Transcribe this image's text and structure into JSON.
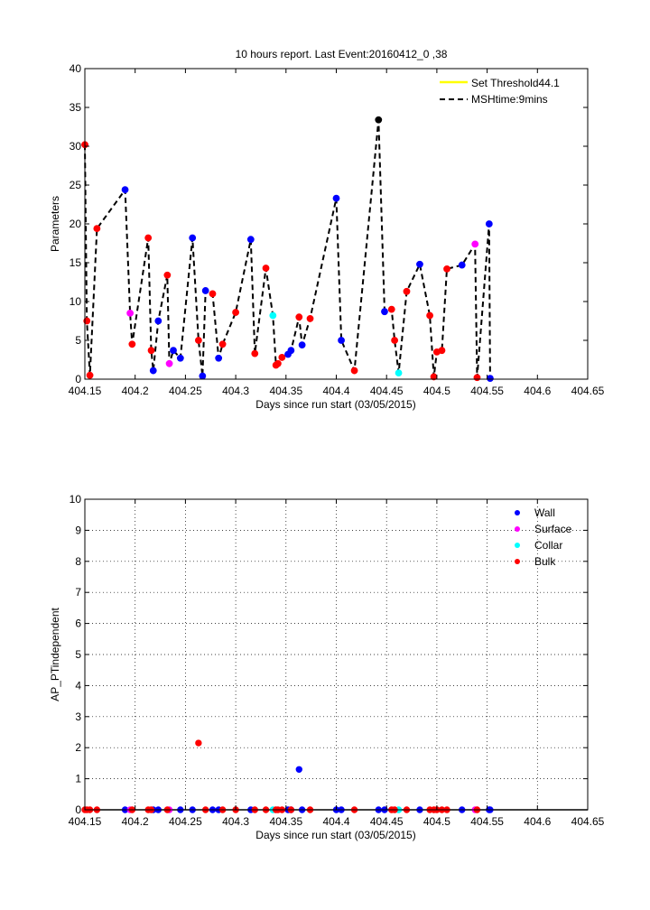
{
  "chart_data": [
    {
      "type": "line",
      "title": "10 hours report. Last Event:20160412_0 ,38",
      "xlabel": "Days since run start (03/05/2015)",
      "ylabel": "Parameters",
      "xlim": [
        404.15,
        404.65
      ],
      "ylim": [
        0,
        40
      ],
      "xticks": [
        "404.15",
        "404.2",
        "404.25",
        "404.3",
        "404.35",
        "404.4",
        "404.45",
        "404.5",
        "404.55",
        "404.6",
        "404.65"
      ],
      "yticks": [
        "0",
        "5",
        "10",
        "15",
        "20",
        "25",
        "30",
        "35",
        "40"
      ],
      "grid": false,
      "legend_position": "top-right",
      "legend": [
        {
          "label": "Set Threshold44.1",
          "color": "#ffff00",
          "style": "solid"
        },
        {
          "label": "MSHtime:9mins",
          "color": "#000000",
          "style": "dashed"
        }
      ],
      "category_colors": {
        "Wall": "#0000ff",
        "Surface": "#ff00ff",
        "Collar": "#00ffff",
        "Bulk": "#ff0000",
        "Last": "#000000"
      },
      "series": [
        {
          "name": "MSHtime:9mins",
          "x": [
            404.15,
            404.152,
            404.155,
            404.162,
            404.19,
            404.195,
            404.197,
            404.213,
            404.216,
            404.218,
            404.223,
            404.232,
            404.234,
            404.238,
            404.245,
            404.257,
            404.263,
            404.267,
            404.27,
            404.277,
            404.283,
            404.287,
            404.3,
            404.315,
            404.319,
            404.33,
            404.337,
            404.34,
            404.342,
            404.346,
            404.352,
            404.355,
            404.363,
            404.366,
            404.374,
            404.4,
            404.405,
            404.418,
            404.442,
            404.448,
            404.455,
            404.458,
            404.462,
            404.47,
            404.483,
            404.493,
            404.497,
            404.5,
            404.505,
            404.51,
            404.525,
            404.538,
            404.54,
            404.552,
            404.553
          ],
          "y": [
            30.2,
            7.5,
            0.5,
            19.4,
            24.4,
            8.5,
            4.5,
            18.2,
            3.7,
            1.1,
            7.5,
            13.4,
            2.0,
            3.7,
            2.7,
            18.2,
            5.0,
            0.4,
            11.4,
            11.0,
            2.7,
            4.5,
            8.6,
            18.0,
            3.3,
            14.3,
            8.2,
            1.8,
            2.0,
            2.8,
            3.2,
            3.7,
            8.0,
            4.4,
            7.8,
            23.3,
            5.0,
            1.1,
            33.4,
            8.7,
            9.0,
            5.0,
            0.8,
            11.3,
            14.8,
            8.2,
            0.3,
            3.5,
            3.7,
            14.2,
            14.7,
            17.4,
            0.2,
            20.0,
            0.1
          ],
          "markers": [
            "Bulk",
            "Bulk",
            "Bulk",
            "Bulk",
            "Wall",
            "Surface",
            "Bulk",
            "Bulk",
            "Bulk",
            "Wall",
            "Wall",
            "Bulk",
            "Surface",
            "Wall",
            "Wall",
            "Wall",
            "Bulk",
            "Wall",
            "Wall",
            "Bulk",
            "Wall",
            "Bulk",
            "Bulk",
            "Wall",
            "Bulk",
            "Bulk",
            "Collar",
            "Bulk",
            "Bulk",
            "Bulk",
            "Wall",
            "Wall",
            "Bulk",
            "Wall",
            "Bulk",
            "Wall",
            "Wall",
            "Bulk",
            "Last",
            "Wall",
            "Bulk",
            "Bulk",
            "Collar",
            "Bulk",
            "Wall",
            "Bulk",
            "Bulk",
            "Bulk",
            "Bulk",
            "Bulk",
            "Wall",
            "Surface",
            "Bulk",
            "Wall",
            "Wall"
          ]
        }
      ]
    },
    {
      "type": "scatter",
      "title": "",
      "xlabel": "Days since run start (03/05/2015)",
      "ylabel": "AP_PTindependent",
      "xlim": [
        404.15,
        404.65
      ],
      "ylim": [
        0,
        10
      ],
      "xticks": [
        "404.15",
        "404.2",
        "404.25",
        "404.3",
        "404.35",
        "404.4",
        "404.45",
        "404.5",
        "404.55",
        "404.6",
        "404.65"
      ],
      "yticks": [
        "0",
        "1",
        "2",
        "3",
        "4",
        "5",
        "6",
        "7",
        "8",
        "9",
        "10"
      ],
      "grid": true,
      "legend_position": "top-right",
      "series": [
        {
          "name": "Wall",
          "color": "#0000ff",
          "x": [
            404.19,
            404.218,
            404.223,
            404.245,
            404.257,
            404.277,
            404.283,
            404.315,
            404.352,
            404.355,
            404.363,
            404.366,
            404.4,
            404.405,
            404.442,
            404.448,
            404.483,
            404.525,
            404.552,
            404.553
          ],
          "y": [
            0,
            0,
            0,
            0,
            0,
            0,
            0,
            0,
            0,
            0,
            1.3,
            0,
            0,
            0,
            0,
            0,
            0,
            0,
            0,
            0
          ]
        },
        {
          "name": "Surface",
          "color": "#ff00ff",
          "x": [
            404.195,
            404.234,
            404.538
          ],
          "y": [
            0,
            0,
            0
          ]
        },
        {
          "name": "Collar",
          "color": "#00ffff",
          "x": [
            404.337,
            404.462
          ],
          "y": [
            0,
            0
          ]
        },
        {
          "name": "Bulk",
          "color": "#ff0000",
          "x": [
            404.15,
            404.152,
            404.155,
            404.162,
            404.197,
            404.213,
            404.216,
            404.232,
            404.263,
            404.27,
            404.287,
            404.3,
            404.319,
            404.33,
            404.34,
            404.342,
            404.346,
            404.355,
            404.374,
            404.418,
            404.455,
            404.458,
            404.47,
            404.493,
            404.497,
            404.5,
            404.505,
            404.51,
            404.54
          ],
          "y": [
            0,
            0,
            0,
            0,
            0,
            0,
            0,
            0,
            2.15,
            0,
            0,
            0,
            0,
            0,
            0,
            0,
            0,
            0,
            0,
            0,
            0,
            0,
            0,
            0,
            0,
            0,
            0,
            0,
            0
          ]
        }
      ]
    }
  ]
}
